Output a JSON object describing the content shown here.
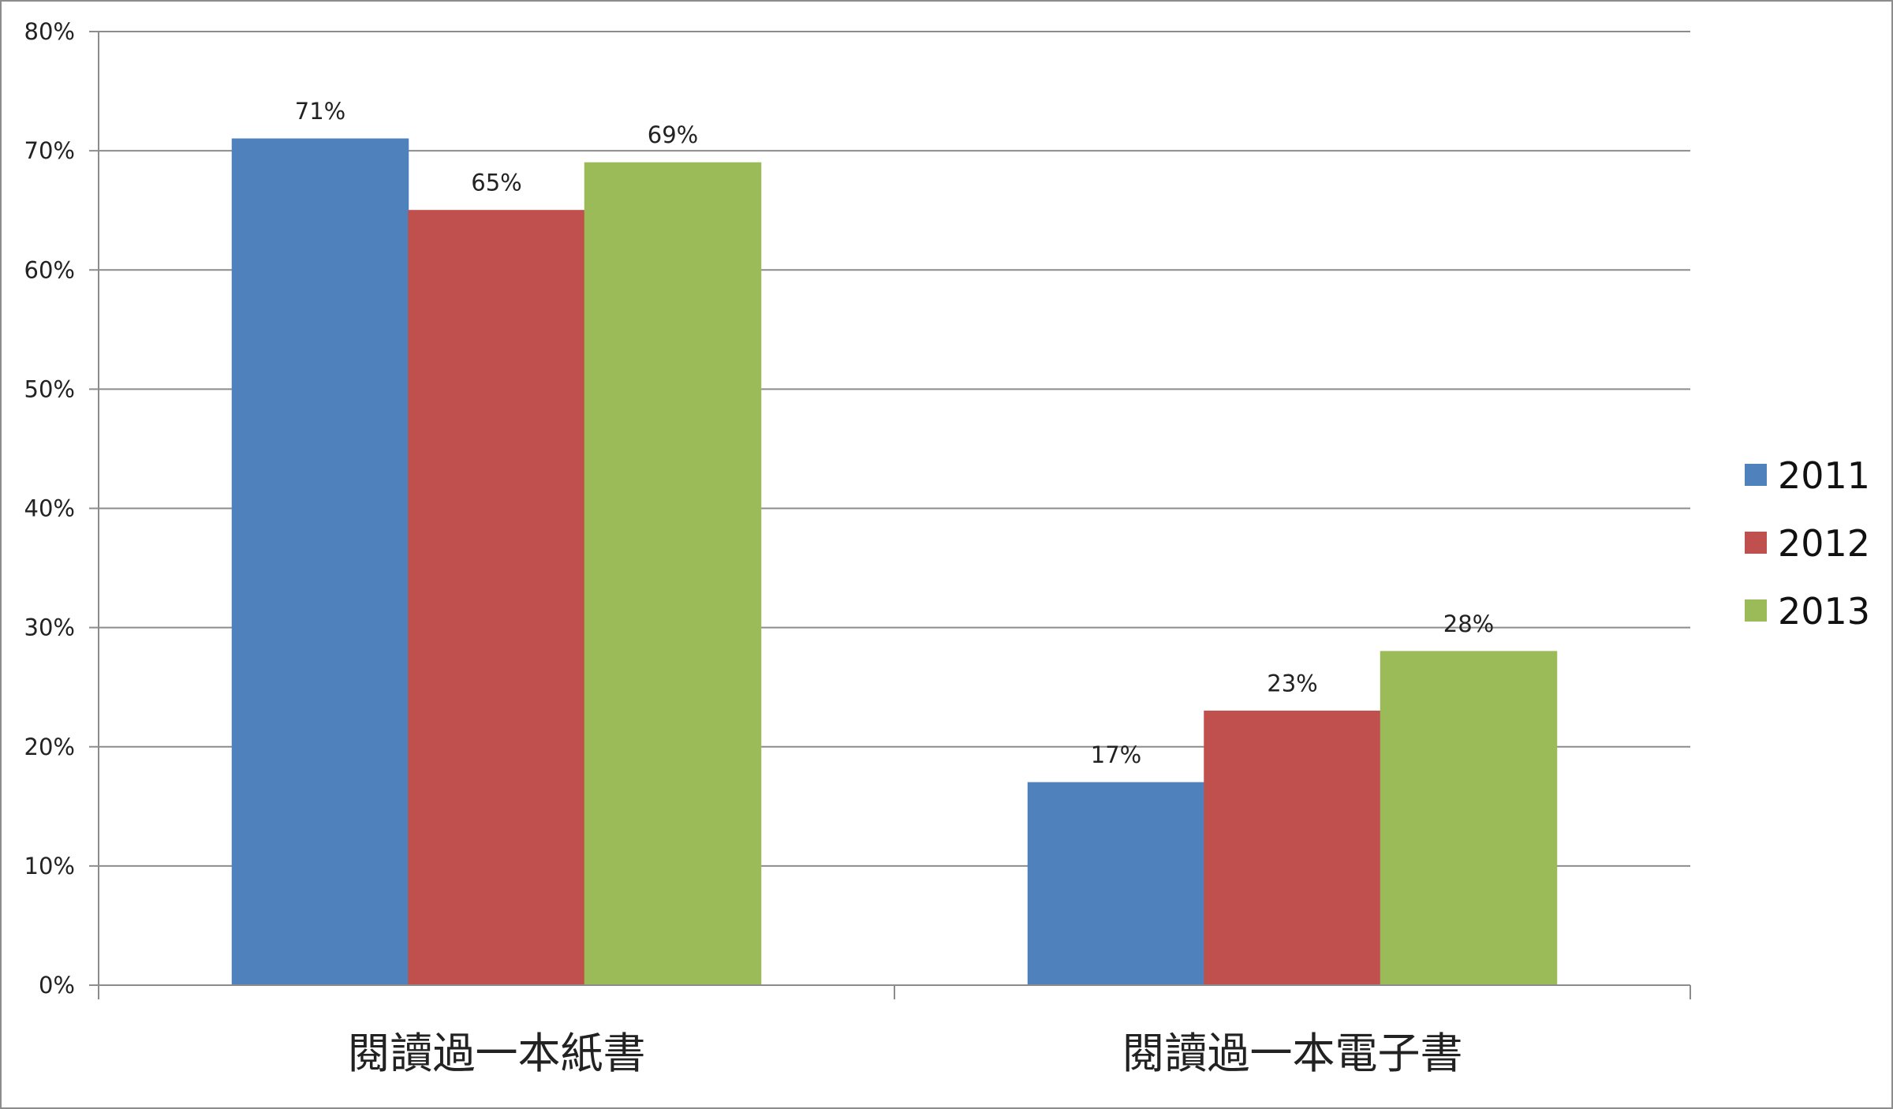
{
  "chart_data": {
    "type": "bar",
    "categories": [
      "閱讀過一本紙書",
      "閱讀過一本電子書"
    ],
    "series": [
      {
        "name": "2011",
        "color": "#4f81bd",
        "values": [
          71,
          17
        ]
      },
      {
        "name": "2012",
        "color": "#c0504d",
        "values": [
          65,
          23
        ]
      },
      {
        "name": "2013",
        "color": "#9bbb59",
        "values": [
          69,
          28
        ]
      }
    ],
    "y_ticks": [
      "0%",
      "10%",
      "20%",
      "30%",
      "40%",
      "50%",
      "60%",
      "70%",
      "80%"
    ],
    "data_labels": [
      [
        "71%",
        "17%"
      ],
      [
        "65%",
        "23%"
      ],
      [
        "69%",
        "28%"
      ]
    ],
    "ylim": [
      0,
      80
    ],
    "value_unit": "%",
    "grid": true,
    "legend_position": "right",
    "title": "",
    "xlabel": "",
    "ylabel": ""
  },
  "colors": {
    "gridline": "#8c8c8c",
    "axis": "#8c8c8c",
    "border": "#8c8c8c"
  }
}
